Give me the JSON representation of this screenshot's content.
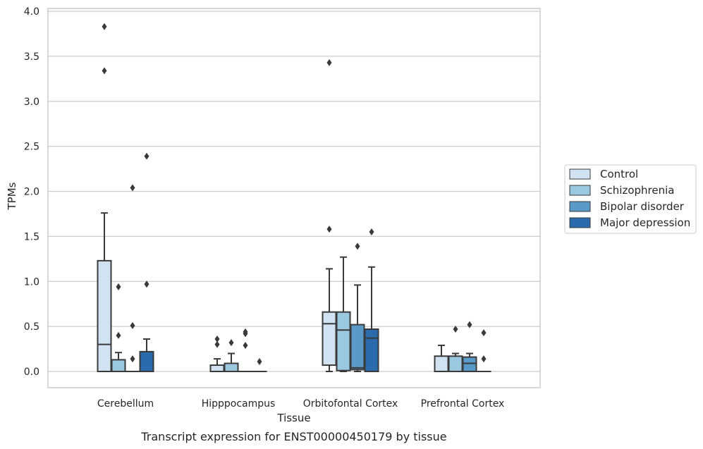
{
  "chart_data": {
    "type": "box",
    "xlabel": "Tissue",
    "ylabel": "TPMs",
    "caption": "Transcript expression for ENST00000450179 by tissue",
    "ylim": [
      -0.18,
      4.03
    ],
    "yticks": [
      "0.0",
      "0.5",
      "1.0",
      "1.5",
      "2.0",
      "2.5",
      "3.0",
      "3.5",
      "4.0"
    ],
    "grid": true,
    "legend_position": "right",
    "categories": [
      "Cerebellum",
      "Hipppocampus",
      "Orbitofontal Cortex",
      "Prefrontal Cortex"
    ],
    "series": [
      {
        "name": "Control",
        "color": "#d1e2f2",
        "boxes": [
          {
            "q1": 0.0,
            "median": 0.3,
            "q3": 1.23,
            "whisker_low": 0.0,
            "whisker_high": 1.76,
            "outliers": [
              3.34,
              3.83
            ]
          },
          {
            "q1": 0.0,
            "median": 0.0,
            "q3": 0.07,
            "whisker_low": 0.0,
            "whisker_high": 0.14,
            "outliers": [
              0.3,
              0.36
            ]
          },
          {
            "q1": 0.07,
            "median": 0.53,
            "q3": 0.66,
            "whisker_low": 0.0,
            "whisker_high": 1.14,
            "outliers": [
              1.58,
              3.43
            ]
          },
          {
            "q1": 0.0,
            "median": 0.0,
            "q3": 0.17,
            "whisker_low": 0.0,
            "whisker_high": 0.29,
            "outliers": []
          }
        ]
      },
      {
        "name": "Schizophrenia",
        "color": "#9ac8e0",
        "boxes": [
          {
            "q1": 0.0,
            "median": 0.0,
            "q3": 0.13,
            "whisker_low": 0.0,
            "whisker_high": 0.21,
            "outliers": [
              0.4,
              0.94
            ]
          },
          {
            "q1": 0.0,
            "median": 0.0,
            "q3": 0.09,
            "whisker_low": 0.0,
            "whisker_high": 0.2,
            "outliers": [
              0.32
            ]
          },
          {
            "q1": 0.01,
            "median": 0.46,
            "q3": 0.66,
            "whisker_low": 0.0,
            "whisker_high": 1.27,
            "outliers": []
          },
          {
            "q1": 0.0,
            "median": 0.0,
            "q3": 0.17,
            "whisker_low": 0.0,
            "whisker_high": 0.2,
            "outliers": [
              0.47
            ]
          }
        ]
      },
      {
        "name": "Bipolar disorder",
        "color": "#5a9ac9",
        "boxes": [
          {
            "q1": 0.0,
            "median": 0.0,
            "q3": 0.0,
            "whisker_low": 0.0,
            "whisker_high": 0.0,
            "outliers": [
              0.14,
              0.51,
              2.04
            ]
          },
          {
            "q1": 0.0,
            "median": 0.0,
            "q3": 0.0,
            "whisker_low": 0.0,
            "whisker_high": 0.0,
            "outliers": [
              0.29,
              0.42,
              0.44
            ]
          },
          {
            "q1": 0.02,
            "median": 0.04,
            "q3": 0.52,
            "whisker_low": 0.0,
            "whisker_high": 0.96,
            "outliers": [
              1.39
            ]
          },
          {
            "q1": 0.0,
            "median": 0.09,
            "q3": 0.16,
            "whisker_low": 0.0,
            "whisker_high": 0.2,
            "outliers": [
              0.52
            ]
          }
        ]
      },
      {
        "name": "Major depression",
        "color": "#2a6aad",
        "boxes": [
          {
            "q1": 0.0,
            "median": 0.0,
            "q3": 0.22,
            "whisker_low": 0.0,
            "whisker_high": 0.36,
            "outliers": [
              0.97,
              2.39
            ]
          },
          {
            "q1": 0.0,
            "median": 0.0,
            "q3": 0.0,
            "whisker_low": 0.0,
            "whisker_high": 0.0,
            "outliers": [
              0.11
            ]
          },
          {
            "q1": 0.0,
            "median": 0.37,
            "q3": 0.47,
            "whisker_low": 0.0,
            "whisker_high": 1.16,
            "outliers": [
              1.55
            ]
          },
          {
            "q1": 0.0,
            "median": 0.0,
            "q3": 0.0,
            "whisker_low": 0.0,
            "whisker_high": 0.0,
            "outliers": [
              0.14,
              0.43
            ]
          }
        ]
      }
    ]
  }
}
